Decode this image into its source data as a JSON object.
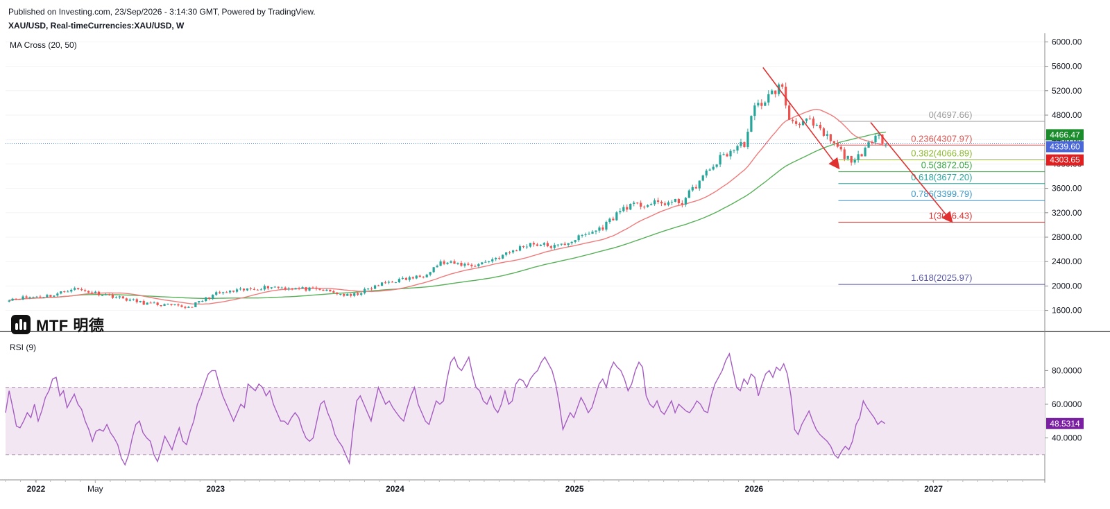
{
  "header": {
    "published": "Published on Investing.com, 23/Sep/2026 - 3:14:30 GMT, Powered by TradingView.",
    "symbol": "XAU/USD, Real-timeCurrencies:XAU/USD, W",
    "ma_indicator": "MA Cross (20, 50)",
    "rsi_indicator": "RSI (9)"
  },
  "logo": {
    "text": "MTF 明德",
    "icon": "mtf-logo-icon"
  },
  "colors": {
    "up": "#26a69a",
    "down": "#ef5350",
    "ma20": "#f07a7a",
    "ma50": "#58b058",
    "rsi": "#a45cc0",
    "rsi_band": "#f3e6f3",
    "trend": "#e03030",
    "price_line": "#2962ff"
  },
  "chart_data": [
    {
      "type": "candlestick",
      "title": "XAU/USD, Real-timeCurrencies:XAU/USD, W",
      "x_axis": {
        "ticks": [
          "2022",
          "May",
          "2023",
          "2024",
          "2025",
          "2026",
          "2027"
        ]
      },
      "y_axis": {
        "ticks": [
          "6000.00",
          "5600.00",
          "5200.00",
          "4800.00",
          "4400.00",
          "4000.00",
          "3600.00",
          "3200.00",
          "2800.00",
          "2400.00",
          "2000.00",
          "1600.00"
        ],
        "range": [
          1300,
          6050
        ]
      },
      "price_labels": [
        {
          "value": "4466.47",
          "color": "#1b8c2c"
        },
        {
          "value": "4339.60",
          "color": "#4a67d8"
        },
        {
          "value": "4303.65",
          "color": "#e02020"
        }
      ],
      "series_anchors": [
        {
          "t": 2021.85,
          "close": 1790
        },
        {
          "t": 2022.1,
          "close": 1850
        },
        {
          "t": 2022.2,
          "close": 1960
        },
        {
          "t": 2022.4,
          "close": 1850
        },
        {
          "t": 2022.6,
          "close": 1720
        },
        {
          "t": 2022.85,
          "close": 1650
        },
        {
          "t": 2023.0,
          "close": 1870
        },
        {
          "t": 2023.3,
          "close": 1990
        },
        {
          "t": 2023.6,
          "close": 1930
        },
        {
          "t": 2023.75,
          "close": 1830
        },
        {
          "t": 2023.95,
          "close": 2060
        },
        {
          "t": 2024.15,
          "close": 2160
        },
        {
          "t": 2024.25,
          "close": 2380
        },
        {
          "t": 2024.45,
          "close": 2340
        },
        {
          "t": 2024.6,
          "close": 2500
        },
        {
          "t": 2024.75,
          "close": 2700
        },
        {
          "t": 2024.9,
          "close": 2640
        },
        {
          "t": 2025.15,
          "close": 2950
        },
        {
          "t": 2025.28,
          "close": 3300
        },
        {
          "t": 2025.45,
          "close": 3350
        },
        {
          "t": 2025.6,
          "close": 3380
        },
        {
          "t": 2025.72,
          "close": 3800
        },
        {
          "t": 2025.82,
          "close": 4120
        },
        {
          "t": 2025.95,
          "close": 4350
        },
        {
          "t": 2026.0,
          "close": 4900
        },
        {
          "t": 2026.08,
          "close": 5100
        },
        {
          "t": 2026.15,
          "close": 5300
        },
        {
          "t": 2026.2,
          "close": 4700
        },
        {
          "t": 2026.3,
          "close": 4700
        },
        {
          "t": 2026.42,
          "close": 4400
        },
        {
          "t": 2026.52,
          "close": 4080
        },
        {
          "t": 2026.6,
          "close": 4100
        },
        {
          "t": 2026.68,
          "close": 4550
        },
        {
          "t": 2026.73,
          "close": 4330
        }
      ],
      "ma_cross": {
        "name": "MA Cross (20, 50)",
        "periods": [
          20,
          50
        ]
      },
      "fibonacci": [
        {
          "label": "0(4697.66)",
          "level": 4697.66,
          "color": "#9a9a9a"
        },
        {
          "label": "0.236(4307.97)",
          "level": 4307.97,
          "color": "#d9534f"
        },
        {
          "label": "0.382(4066.89)",
          "level": 4066.89,
          "color": "#8ab82e"
        },
        {
          "label": "0.5(3872.05)",
          "level": 3872.05,
          "color": "#3aa845"
        },
        {
          "label": "0.618(3677.20)",
          "level": 3677.2,
          "color": "#26a69a"
        },
        {
          "label": "0.786(3399.79)",
          "level": 3399.79,
          "color": "#3a96c8"
        },
        {
          "label": "1(3046.43)",
          "level": 3046.43,
          "color": "#e03030"
        },
        {
          "label": "1.618(2025.97)",
          "level": 2025.97,
          "color": "#5858a8"
        }
      ],
      "trend_arrows": [
        {
          "from": {
            "t": 2026.05,
            "value": 5580
          },
          "to": {
            "t": 2026.47,
            "value": 3940
          }
        },
        {
          "from": {
            "t": 2026.65,
            "value": 4680
          },
          "to": {
            "t": 2027.1,
            "value": 3060
          }
        }
      ]
    },
    {
      "type": "line",
      "title": "RSI (9)",
      "y_axis": {
        "ticks": [
          "80.0000",
          "60.0000",
          "40.0000"
        ],
        "range": [
          20,
          95
        ]
      },
      "bands": {
        "upper": 70,
        "lower": 30
      },
      "last_label": {
        "value": "48.5314",
        "color": "#7b1fa2"
      },
      "values": [
        55,
        68,
        58,
        47,
        46,
        50,
        55,
        52,
        60,
        50,
        56,
        64,
        68,
        75,
        76,
        65,
        68,
        58,
        62,
        66,
        60,
        57,
        50,
        45,
        38,
        44,
        45,
        44,
        48,
        43,
        40,
        36,
        28,
        24,
        30,
        40,
        48,
        50,
        43,
        40,
        38,
        30,
        26,
        33,
        41,
        37,
        33,
        40,
        46,
        38,
        36,
        44,
        50,
        60,
        65,
        72,
        78,
        80,
        80,
        72,
        65,
        60,
        55,
        50,
        55,
        60,
        58,
        72,
        70,
        68,
        72,
        70,
        65,
        68,
        60,
        55,
        50,
        50,
        48,
        52,
        55,
        52,
        45,
        40,
        38,
        40,
        50,
        60,
        62,
        55,
        50,
        42,
        38,
        35,
        30,
        25,
        45,
        62,
        65,
        60,
        55,
        50,
        60,
        70,
        65,
        60,
        62,
        58,
        55,
        52,
        50,
        58,
        65,
        70,
        60,
        55,
        50,
        48,
        55,
        62,
        60,
        62,
        75,
        85,
        88,
        82,
        80,
        84,
        88,
        78,
        70,
        68,
        62,
        60,
        65,
        58,
        55,
        60,
        68,
        60,
        62,
        72,
        75,
        74,
        70,
        75,
        78,
        80,
        85,
        88,
        84,
        80,
        72,
        60,
        45,
        50,
        55,
        52,
        58,
        64,
        60,
        55,
        58,
        65,
        72,
        75,
        70,
        80,
        85,
        82,
        80,
        75,
        68,
        72,
        80,
        85,
        82,
        65,
        60,
        58,
        62,
        56,
        54,
        58,
        62,
        55,
        60,
        58,
        56,
        55,
        58,
        62,
        60,
        56,
        55,
        65,
        72,
        76,
        80,
        86,
        90,
        80,
        70,
        68,
        75,
        72,
        78,
        76,
        65,
        72,
        78,
        80,
        76,
        82,
        80,
        84,
        78,
        65,
        45,
        42,
        48,
        52,
        56,
        50,
        45,
        42,
        40,
        38,
        35,
        30,
        28,
        32,
        35,
        33,
        38,
        48,
        52,
        62,
        58,
        55,
        52,
        48,
        50,
        48.53
      ]
    }
  ]
}
